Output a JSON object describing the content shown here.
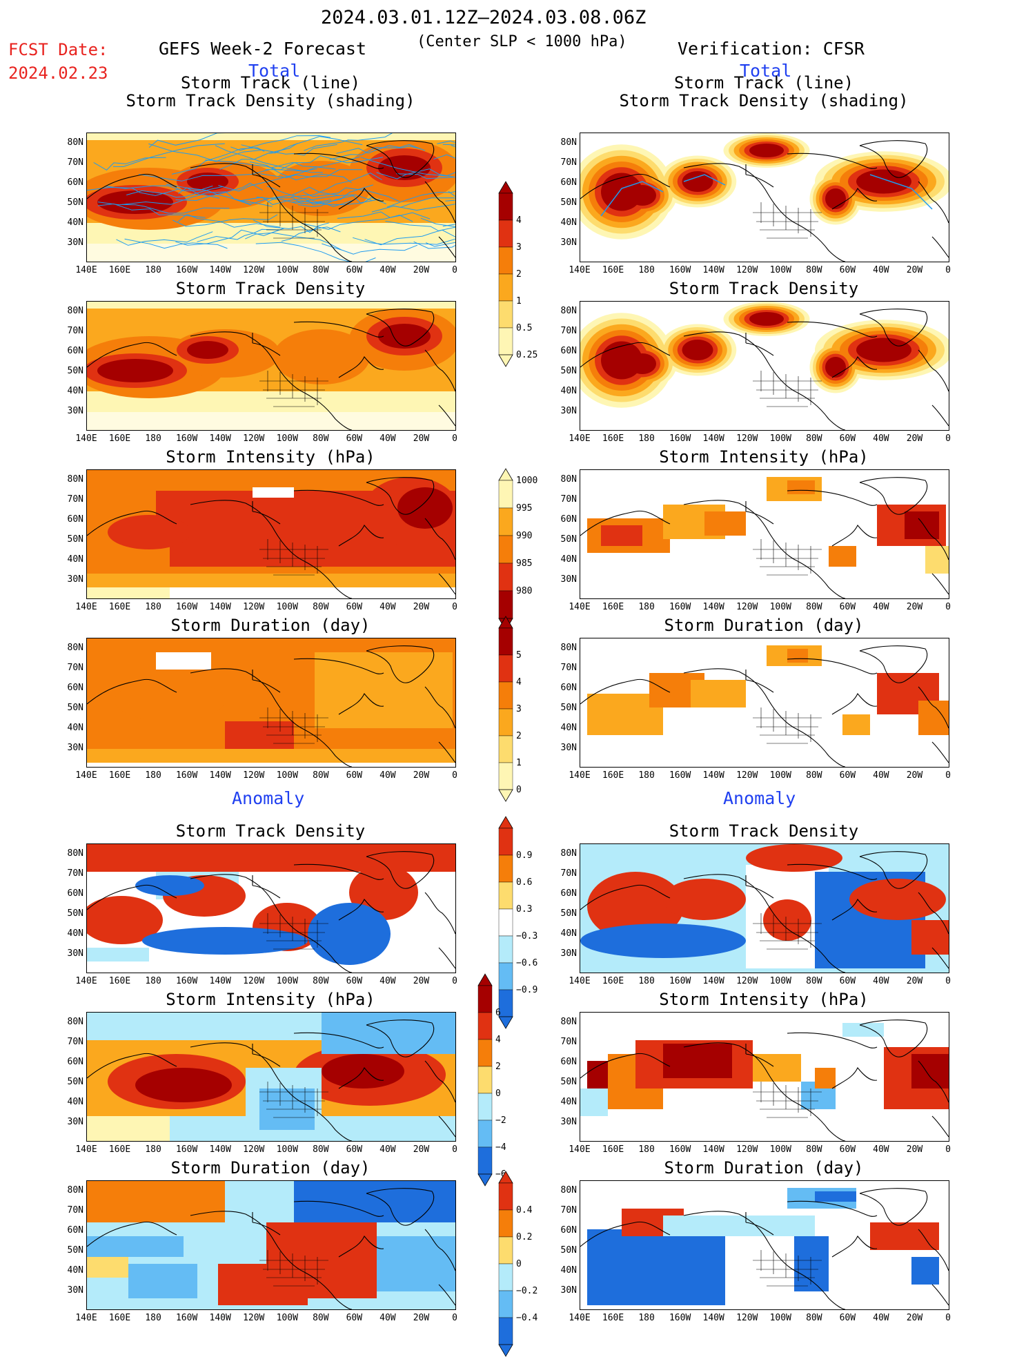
{
  "header": {
    "date_range": "2024.03.01.12Z–2024.03.08.06Z",
    "fcst_label": "FCST Date:",
    "fcst_date": "2024.02.23",
    "left_title": "GEFS Week-2 Forecast",
    "center_note": "(Center SLP < 1000 hPa)",
    "right_title": "Verification: CFSR"
  },
  "sections": {
    "total": "Total",
    "anomaly": "Anomaly"
  },
  "panel_titles": {
    "track_line": "Storm Track (line)",
    "track_shading": "Storm Track Density (shading)",
    "density": "Storm Track Density",
    "intensity": "Storm Intensity (hPa)",
    "duration": "Storm Duration (day)"
  },
  "axes": {
    "x_ticks": [
      "140E",
      "160E",
      "180",
      "160W",
      "140W",
      "120W",
      "100W",
      "80W",
      "60W",
      "40W",
      "20W",
      "0"
    ],
    "y_ticks": [
      "80N",
      "70N",
      "60N",
      "50N",
      "40N",
      "30N"
    ]
  },
  "colorbars": {
    "density_total": [
      "4",
      "3",
      "2",
      "1",
      "0.5",
      "0.25"
    ],
    "intensity_total": [
      "1000",
      "995",
      "990",
      "985",
      "980"
    ],
    "duration_total": [
      "5",
      "4",
      "3",
      "2",
      "1",
      "0"
    ],
    "density_anom": [
      "0.9",
      "0.6",
      "0.3",
      "−0.3",
      "−0.6",
      "−0.9"
    ],
    "intensity_anom": [
      "6",
      "4",
      "2",
      "0",
      "−2",
      "−4",
      "−6"
    ],
    "duration_anom": [
      "0.4",
      "0.2",
      "0",
      "−0.2",
      "−0.4"
    ]
  },
  "palette": {
    "dark_red": "#a50000",
    "red": "#e03212",
    "orange": "#f57e0a",
    "light_orange": "#fba81e",
    "yellow": "#fddc6e",
    "pale_yellow": "#fef6b4",
    "pale_blue": "#b4ebfa",
    "light_blue": "#64bcf4",
    "blue": "#1e6edc",
    "track_blue": "#1e9bef"
  }
}
